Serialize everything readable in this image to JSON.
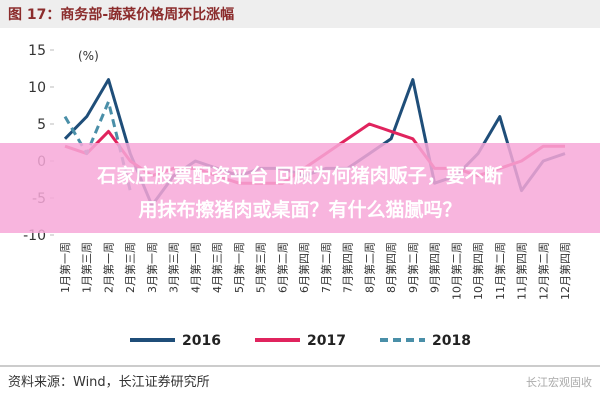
{
  "chart_data": {
    "type": "line",
    "title": "图 17：商务部-蔬菜价格周环比涨幅",
    "y_label": "(%)",
    "categories": [
      "1月第一周",
      "1月第三周",
      "2月第一周",
      "2月第三周",
      "3月第一周",
      "3月第三周",
      "4月第一周",
      "4月第三周",
      "5月第一周",
      "5月第三周",
      "6月第二周",
      "6月第四周",
      "7月第二周",
      "7月第四周",
      "8月第二周",
      "8月第四周",
      "9月第二周",
      "9月第四周",
      "10月第二周",
      "10月第四周",
      "11月第二周",
      "11月第四周",
      "12月第二周",
      "12月第四周"
    ],
    "series": [
      {
        "name": "2016",
        "color": "#1f4e79",
        "dashed": false,
        "values": [
          3,
          6,
          11,
          1,
          -6,
          -2,
          0,
          -1,
          -2,
          -1,
          -1,
          -2,
          -1,
          -1,
          1,
          3,
          11,
          -3,
          -2,
          1,
          6,
          -4,
          0,
          1
        ]
      },
      {
        "name": "2017",
        "color": "#e0245e",
        "dashed": false,
        "values": [
          2,
          1,
          4,
          0,
          -2,
          -1,
          -1,
          -2,
          -3,
          -3,
          -3,
          -1,
          1,
          3,
          5,
          4,
          3,
          -1,
          -1,
          -2,
          -1,
          0,
          2,
          2
        ]
      },
      {
        "name": "2018",
        "color": "#4a8fa8",
        "dashed": true,
        "values": [
          6,
          1,
          8,
          -4,
          null,
          null,
          null,
          null,
          null,
          null,
          null,
          null,
          null,
          null,
          null,
          null,
          null,
          null,
          null,
          null,
          null,
          null,
          null,
          null
        ]
      }
    ],
    "ylim": [
      -10,
      15
    ],
    "yticks": [
      -10,
      -5,
      0,
      5,
      10,
      15
    ],
    "grid": false,
    "source": "资料来源：Wind，长江证券研究所",
    "watermark": "长江宏观固收"
  },
  "overlay": {
    "lines": [
      "石家庄股票配资平台 回顾为何猪肉贩子，要不断",
      "用抹布擦猪肉或桌面？有什么猫腻吗？"
    ]
  }
}
